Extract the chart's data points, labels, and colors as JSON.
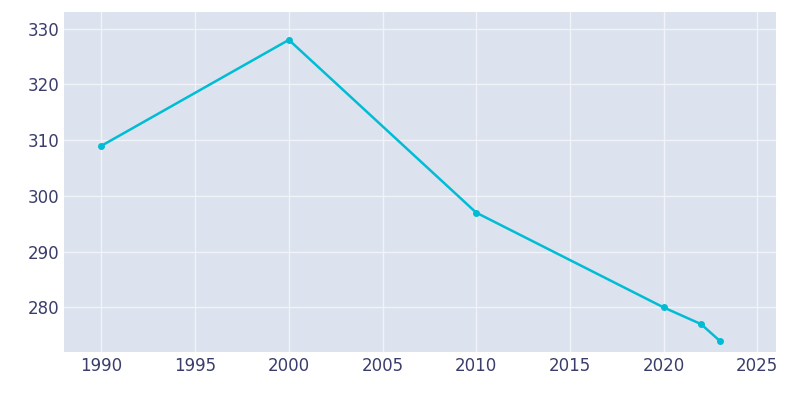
{
  "years": [
    1990,
    2000,
    2010,
    2020,
    2022,
    2023
  ],
  "population": [
    309,
    328,
    297,
    280,
    277,
    274
  ],
  "line_color": "#00bcd4",
  "marker": "o",
  "marker_size": 4,
  "axes_background_color": "#dce3ee",
  "figure_background_color": "#ffffff",
  "grid_color": "#f0f3f8",
  "xlim": [
    1988,
    2026
  ],
  "ylim": [
    272,
    333
  ],
  "xticks": [
    1990,
    1995,
    2000,
    2005,
    2010,
    2015,
    2020,
    2025
  ],
  "yticks": [
    280,
    290,
    300,
    310,
    320,
    330
  ],
  "tick_label_color": "#3a3d6b",
  "tick_fontsize": 12,
  "line_width": 1.8
}
